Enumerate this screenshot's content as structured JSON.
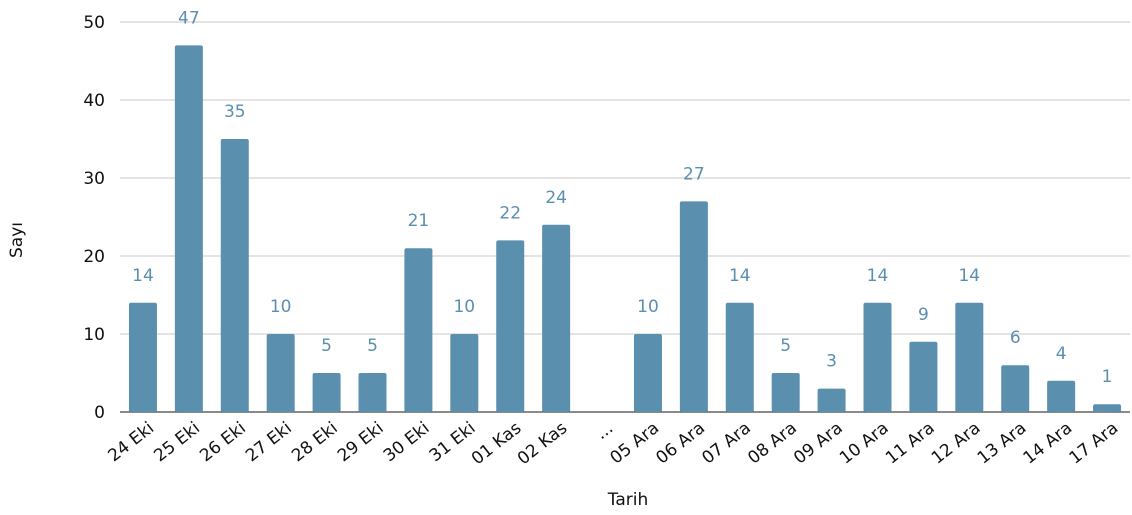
{
  "chart_data": {
    "type": "bar",
    "title": "",
    "xlabel": "Tarih",
    "ylabel": "Sayı",
    "ylim": [
      0,
      50
    ],
    "yticks": [
      0,
      10,
      20,
      30,
      40,
      50
    ],
    "grid": true,
    "categories": [
      "24 Eki",
      "25 Eki",
      "26 Eki",
      "27 Eki",
      "28 Eki",
      "29 Eki",
      "30 Eki",
      "31 Eki",
      "01 Kas",
      "02 Kas",
      "...",
      "05 Ara",
      "06 Ara",
      "07 Ara",
      "08 Ara",
      "09 Ara",
      "10 Ara",
      "11 Ara",
      "12 Ara",
      "13 Ara",
      "14 Ara",
      "17 Ara"
    ],
    "values": [
      14,
      47,
      35,
      10,
      5,
      5,
      21,
      10,
      22,
      24,
      null,
      10,
      27,
      14,
      5,
      3,
      14,
      9,
      14,
      6,
      4,
      1
    ],
    "bar_color": "#5a8fae",
    "label_color": "#5a8fae"
  }
}
